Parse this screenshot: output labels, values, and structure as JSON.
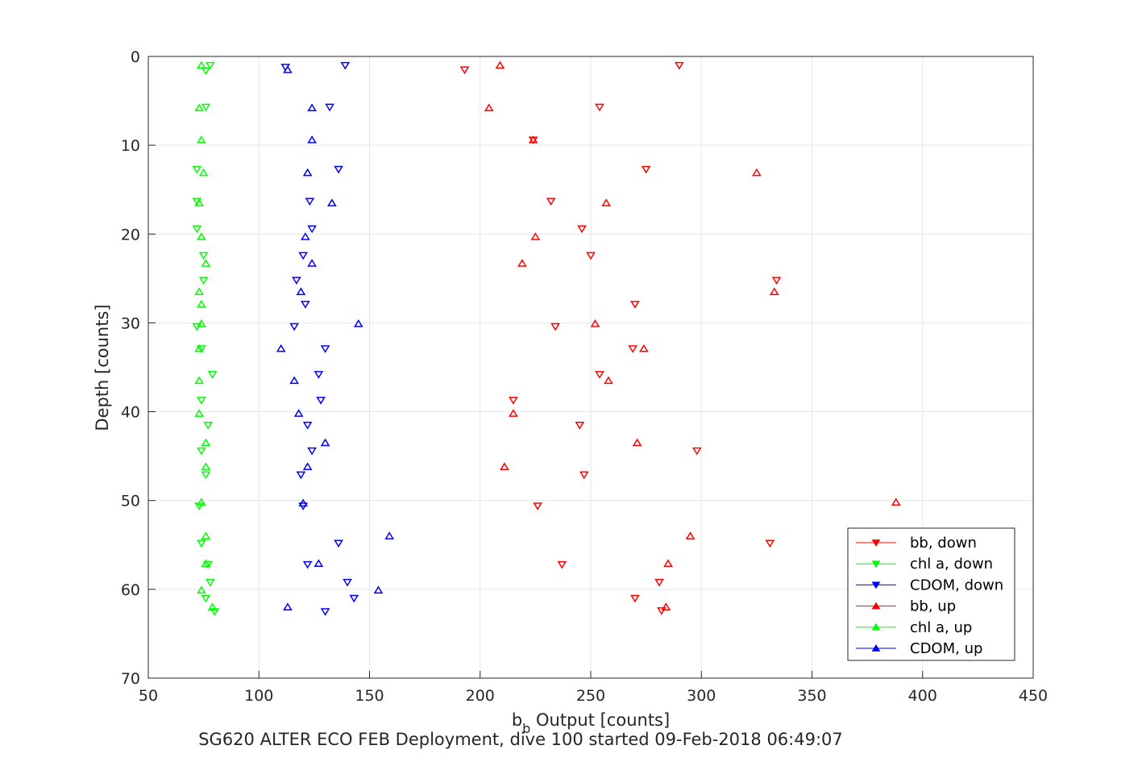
{
  "chart_data": {
    "type": "scatter",
    "xlabel_main": "b",
    "xlabel_sub": "b",
    "xlabel_rest": " Output [counts]",
    "ylabel": "Depth [counts]",
    "caption": "SG620 ALTER ECO FEB Deployment, dive 100 started 09-Feb-2018 06:49:07",
    "xlim": [
      50,
      450
    ],
    "ylim": [
      0,
      70
    ],
    "y_reversed": true,
    "grid": true,
    "legend_position": "lower-right",
    "xticks": [
      50,
      100,
      150,
      200,
      250,
      300,
      350,
      400,
      450
    ],
    "yticks": [
      0,
      10,
      20,
      30,
      40,
      50,
      60,
      70
    ],
    "series": [
      {
        "name": "bb, down",
        "color": "#ff0000",
        "marker": "down",
        "points": [
          [
            290,
            1
          ],
          [
            193,
            1.5
          ],
          [
            254,
            5.7
          ],
          [
            224,
            9.4
          ],
          [
            275,
            12.7
          ],
          [
            232,
            16.3
          ],
          [
            246,
            19.4
          ],
          [
            250,
            22.4
          ],
          [
            334,
            25.2
          ],
          [
            270,
            27.9
          ],
          [
            234,
            30.4
          ],
          [
            269,
            32.9
          ],
          [
            254,
            35.8
          ],
          [
            215,
            38.7
          ],
          [
            245,
            41.5
          ],
          [
            298,
            44.4
          ],
          [
            247,
            47.1
          ],
          [
            226,
            50.6
          ],
          [
            331,
            54.8
          ],
          [
            237,
            57.2
          ],
          [
            281,
            59.2
          ],
          [
            270,
            61
          ],
          [
            282,
            62.4
          ]
        ]
      },
      {
        "name": "chl a, down",
        "color": "#00ff00",
        "marker": "down",
        "points": [
          [
            78,
            1
          ],
          [
            76,
            1.6
          ],
          [
            76,
            5.7
          ],
          [
            72,
            12.7
          ],
          [
            72,
            16.3
          ],
          [
            72,
            19.4
          ],
          [
            75,
            22.4
          ],
          [
            75,
            25.2
          ],
          [
            72,
            30.4
          ],
          [
            74,
            32.9
          ],
          [
            79,
            35.8
          ],
          [
            74,
            38.7
          ],
          [
            77,
            41.5
          ],
          [
            74,
            44.4
          ],
          [
            76,
            47.1
          ],
          [
            73,
            50.6
          ],
          [
            74,
            54.8
          ],
          [
            77,
            57.2
          ],
          [
            78,
            59.2
          ],
          [
            76,
            61
          ],
          [
            80,
            62.5
          ]
        ]
      },
      {
        "name": "CDOM, down",
        "color": "#0000ff",
        "marker": "down",
        "points": [
          [
            139,
            1
          ],
          [
            112,
            1.2
          ],
          [
            132,
            5.7
          ],
          [
            136,
            12.7
          ],
          [
            123,
            16.3
          ],
          [
            124,
            19.4
          ],
          [
            120,
            22.4
          ],
          [
            117,
            25.2
          ],
          [
            121,
            27.9
          ],
          [
            116,
            30.4
          ],
          [
            130,
            32.9
          ],
          [
            127,
            35.8
          ],
          [
            128,
            38.7
          ],
          [
            122,
            41.5
          ],
          [
            124,
            44.4
          ],
          [
            119,
            47.1
          ],
          [
            120,
            50.6
          ],
          [
            136,
            54.8
          ],
          [
            122,
            57.2
          ],
          [
            140,
            59.2
          ],
          [
            143,
            61
          ],
          [
            130,
            62.5
          ]
        ]
      },
      {
        "name": "bb, up",
        "color": "#ff0000",
        "marker": "up",
        "points": [
          [
            209,
            1
          ],
          [
            204,
            5.8
          ],
          [
            224,
            9.4
          ],
          [
            325,
            13.1
          ],
          [
            257,
            16.5
          ],
          [
            225,
            20.3
          ],
          [
            219,
            23.3
          ],
          [
            333,
            26.5
          ],
          [
            252,
            30.1
          ],
          [
            274,
            32.9
          ],
          [
            258,
            36.5
          ],
          [
            215,
            40.2
          ],
          [
            271,
            43.5
          ],
          [
            211,
            46.2
          ],
          [
            388,
            50.2
          ],
          [
            295,
            54
          ],
          [
            285,
            57.1
          ],
          [
            284,
            62
          ]
        ]
      },
      {
        "name": "chl a, up",
        "color": "#00ff00",
        "marker": "up",
        "points": [
          [
            74,
            1
          ],
          [
            73,
            5.8
          ],
          [
            74,
            9.4
          ],
          [
            75,
            13.1
          ],
          [
            73,
            16.5
          ],
          [
            74,
            20.3
          ],
          [
            76,
            23.3
          ],
          [
            73,
            26.5
          ],
          [
            74,
            27.9
          ],
          [
            74,
            30.1
          ],
          [
            73,
            32.9
          ],
          [
            73,
            36.5
          ],
          [
            73,
            40.2
          ],
          [
            76,
            43.5
          ],
          [
            76,
            46.2
          ],
          [
            74,
            50.2
          ],
          [
            76,
            54
          ],
          [
            76,
            57.1
          ],
          [
            74,
            60.1
          ],
          [
            79,
            62
          ]
        ]
      },
      {
        "name": "CDOM, up",
        "color": "#0000ff",
        "marker": "up",
        "points": [
          [
            113,
            1.5
          ],
          [
            124,
            5.8
          ],
          [
            124,
            9.4
          ],
          [
            122,
            13.1
          ],
          [
            133,
            16.5
          ],
          [
            121,
            20.3
          ],
          [
            124,
            23.3
          ],
          [
            119,
            26.5
          ],
          [
            145,
            30.1
          ],
          [
            110,
            32.9
          ],
          [
            116,
            36.5
          ],
          [
            118,
            40.2
          ],
          [
            130,
            43.5
          ],
          [
            122,
            46.2
          ],
          [
            120,
            50.3
          ],
          [
            159,
            54
          ],
          [
            127,
            57.1
          ],
          [
            154,
            60.1
          ],
          [
            113,
            62
          ]
        ]
      }
    ]
  }
}
